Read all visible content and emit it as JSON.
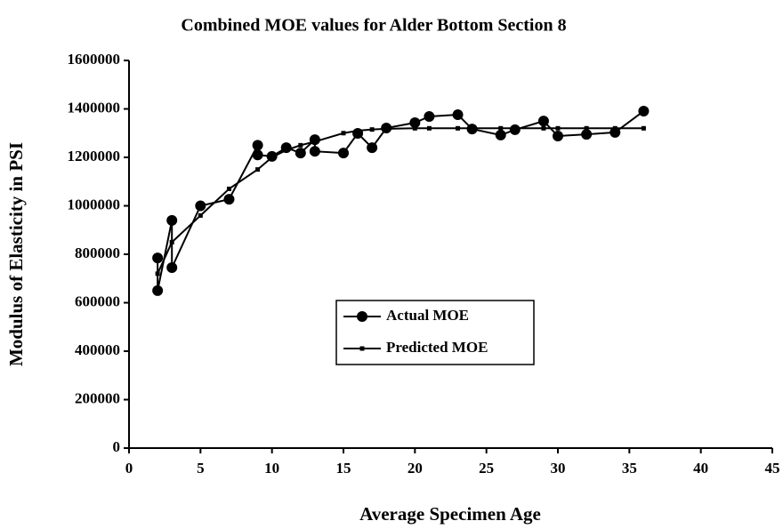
{
  "chart_data": {
    "type": "line",
    "title": "Combined MOE values for Alder Bottom Section 8",
    "xlabel": "Average Specimen Age",
    "ylabel": "Modulus of Elasticity in PSI",
    "xlim": [
      0,
      45
    ],
    "xticks": [
      0,
      5,
      10,
      15,
      20,
      25,
      30,
      35,
      40,
      45
    ],
    "ylim": [
      0,
      1600000
    ],
    "yticks": [
      0,
      200000,
      400000,
      600000,
      800000,
      1000000,
      1200000,
      1400000,
      1600000
    ],
    "grid": false,
    "legend": "center",
    "series": [
      {
        "name": "Actual MOE",
        "color": "#000000",
        "marker": "circle",
        "x": [
          2,
          2,
          3,
          3,
          5,
          7,
          9,
          9,
          10,
          11,
          12,
          13,
          13,
          15,
          16,
          17,
          18,
          20,
          21,
          23,
          24,
          26,
          27,
          29,
          30,
          32,
          34,
          36
        ],
        "values": [
          785000,
          650000,
          940000,
          745000,
          1000000,
          1027000,
          1250000,
          1210000,
          1204000,
          1240000,
          1218000,
          1273000,
          1225000,
          1218000,
          1299000,
          1240000,
          1321000,
          1343000,
          1369000,
          1376000,
          1317000,
          1292000,
          1314000,
          1350000,
          1288000,
          1295000,
          1303000,
          1391000
        ]
      },
      {
        "name": "Predicted MOE",
        "color": "#000000",
        "marker": "square",
        "x": [
          2,
          3,
          5,
          7,
          9,
          10,
          11,
          12,
          13,
          15,
          16,
          17,
          18,
          20,
          21,
          23,
          24,
          26,
          27,
          29,
          30,
          32,
          34,
          36
        ],
        "values": [
          720000,
          850000,
          960000,
          1070000,
          1150000,
          1200000,
          1230000,
          1250000,
          1265000,
          1300000,
          1310000,
          1315000,
          1318000,
          1320000,
          1320000,
          1320000,
          1320000,
          1320000,
          1320000,
          1320000,
          1320000,
          1320000,
          1320000,
          1320000
        ]
      }
    ]
  }
}
